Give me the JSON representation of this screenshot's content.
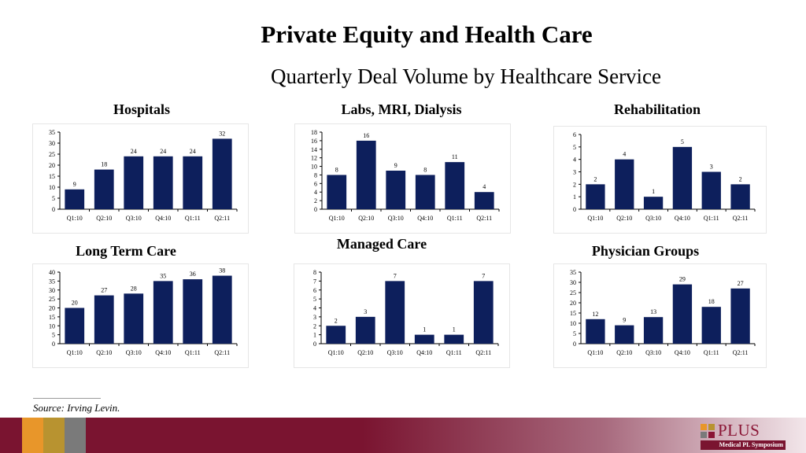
{
  "title": "Private Equity and Health Care",
  "subtitle": "Quarterly Deal Volume by Healthcare Service",
  "source": "Source: Irving Levin.",
  "logo": {
    "text": "PLUS",
    "sub": "Medical PL Symposium"
  },
  "colors": {
    "bar": "#0d1f5c",
    "footer": "#7a1430",
    "band1": "#e8962a",
    "band2": "#b89330",
    "band3": "#7a7a7a"
  },
  "chart_data": [
    {
      "type": "bar",
      "title": "Hospitals",
      "categories": [
        "Q1:10",
        "Q2:10",
        "Q3:10",
        "Q4:10",
        "Q1:11",
        "Q2:11"
      ],
      "values": [
        9,
        18,
        24,
        24,
        24,
        32
      ],
      "ylim": [
        0,
        35
      ],
      "yticks": [
        0,
        5,
        10,
        15,
        20,
        25,
        30,
        35
      ],
      "grid": false
    },
    {
      "type": "bar",
      "title": "Labs, MRI, Dialysis",
      "categories": [
        "Q1:10",
        "Q2:10",
        "Q3:10",
        "Q4:10",
        "Q1:11",
        "Q2:11"
      ],
      "values": [
        8,
        16,
        9,
        8,
        11,
        4
      ],
      "ylim": [
        0,
        18
      ],
      "yticks": [
        0,
        2,
        4,
        6,
        8,
        10,
        12,
        14,
        16,
        18
      ],
      "grid": false
    },
    {
      "type": "bar",
      "title": "Rehabilitation",
      "categories": [
        "Q1:10",
        "Q2:10",
        "Q3:10",
        "Q4:10",
        "Q1:11",
        "Q2:11"
      ],
      "values": [
        2,
        4,
        1,
        5,
        3,
        2
      ],
      "ylim": [
        0,
        6
      ],
      "yticks": [
        0,
        1,
        2,
        3,
        4,
        5,
        6
      ],
      "grid": false
    },
    {
      "type": "bar",
      "title": "Long Term Care",
      "categories": [
        "Q1:10",
        "Q2:10",
        "Q3:10",
        "Q4:10",
        "Q1:11",
        "Q2:11"
      ],
      "values": [
        20,
        27,
        28,
        35,
        36,
        38
      ],
      "ylim": [
        0,
        40
      ],
      "yticks": [
        0,
        5,
        10,
        15,
        20,
        25,
        30,
        35,
        40
      ],
      "grid": false
    },
    {
      "type": "bar",
      "title": "Managed Care",
      "categories": [
        "Q1:10",
        "Q2:10",
        "Q3:10",
        "Q4:10",
        "Q1:11",
        "Q2:11"
      ],
      "values": [
        2,
        3,
        7,
        1,
        1,
        7
      ],
      "ylim": [
        0,
        8
      ],
      "yticks": [
        0,
        1,
        2,
        3,
        4,
        5,
        6,
        7,
        8
      ],
      "grid": false
    },
    {
      "type": "bar",
      "title": "Physician Groups",
      "categories": [
        "Q1:10",
        "Q2:10",
        "Q3:10",
        "Q4:10",
        "Q1:11",
        "Q2:11"
      ],
      "values": [
        12,
        9,
        13,
        29,
        18,
        27
      ],
      "ylim": [
        0,
        35
      ],
      "yticks": [
        0,
        5,
        10,
        15,
        20,
        25,
        30,
        35
      ],
      "grid": false
    }
  ]
}
